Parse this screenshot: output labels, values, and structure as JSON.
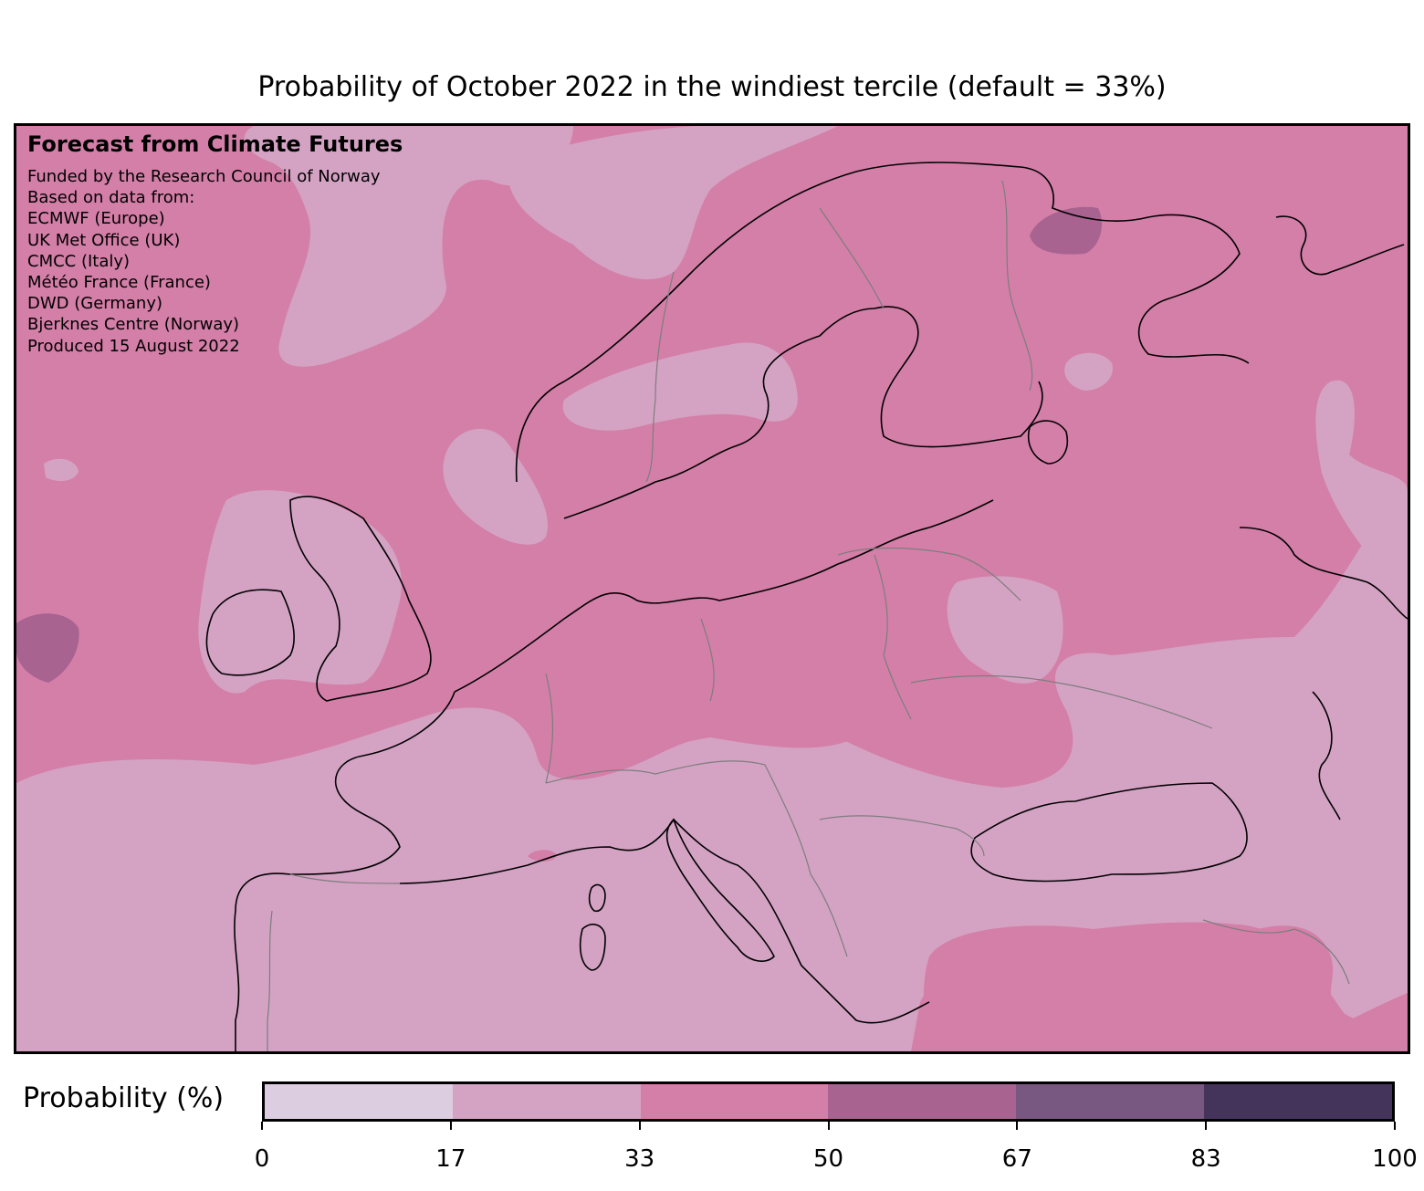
{
  "title": "Probability of October 2022 in the windiest tercile (default = 33%)",
  "credit": {
    "heading": "Forecast from Climate Futures",
    "lines": [
      "Funded by the Research Council of Norway",
      "Based on data from:",
      "ECMWF (Europe)",
      "UK Met Office (UK)",
      "CMCC (Italy)",
      "Météo France (France)",
      "DWD (Germany)",
      "Bjerknes Centre (Norway)",
      "Produced 15 August 2022"
    ]
  },
  "colorbar": {
    "label": "Probability (%)",
    "ticks": [
      "0",
      "17",
      "33",
      "50",
      "67",
      "83",
      "100"
    ],
    "colors": [
      "#dccde0",
      "#d4a3c4",
      "#d47fa8",
      "#a86391",
      "#785880",
      "#44345c"
    ]
  },
  "map_colors": {
    "bin_17_33": "#d4a3c4",
    "bin_33_50": "#d47fa8",
    "bin_50_67": "#a86391"
  }
}
